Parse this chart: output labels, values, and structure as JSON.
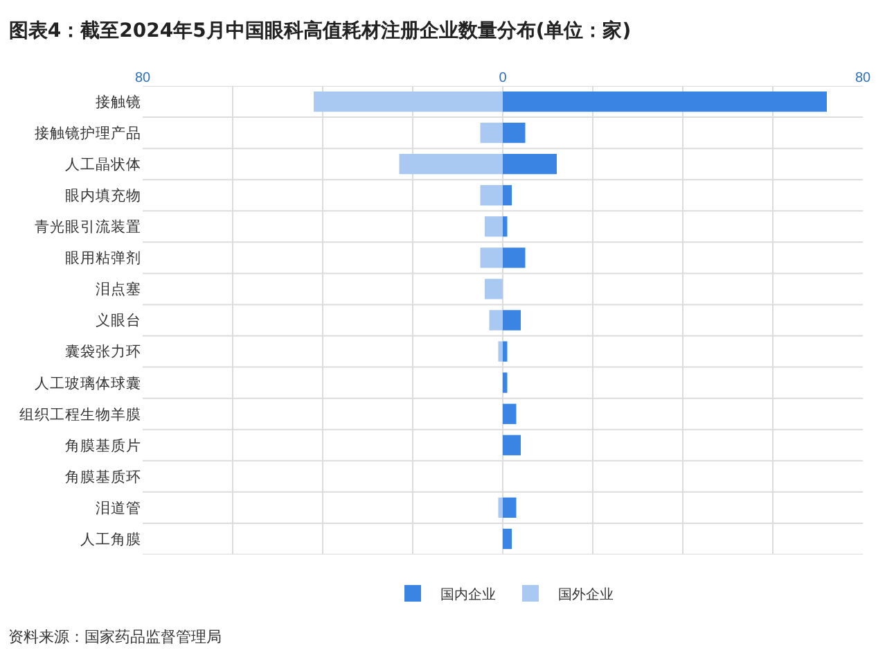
{
  "chart_data": {
    "type": "bar",
    "orientation": "horizontal",
    "title": "图表4：截至2024年5月中国眼科高值耗材注册企业数量分布(单位：家)",
    "categories": [
      "接触镜",
      "接触镜护理产品",
      "人工晶状体",
      "眼内填充物",
      "青光眼引流装置",
      "眼用粘弹剂",
      "泪点塞",
      "义眼台",
      "囊袋张力环",
      "人工玻璃体球囊",
      "组织工程生物羊膜",
      "角膜基质片",
      "角膜基质环",
      "泪道管",
      "人工角膜"
    ],
    "series": [
      {
        "name": "国内企业",
        "color": "#3a84e4",
        "values": [
          72,
          5,
          12,
          2,
          1,
          5,
          0,
          4,
          1,
          1,
          3,
          4,
          0,
          3,
          2
        ]
      },
      {
        "name": "国外企业",
        "color": "#a9c9f3",
        "values": [
          -42,
          -5,
          -23,
          -5,
          -4,
          -5,
          -4,
          -3,
          -1,
          0,
          0,
          0,
          0,
          -1,
          0
        ]
      }
    ],
    "xlim": [
      -80,
      80
    ],
    "xticks": [
      {
        "value": -80,
        "label": "80"
      },
      {
        "value": -60,
        "label": null
      },
      {
        "value": -40,
        "label": null
      },
      {
        "value": -20,
        "label": null
      },
      0,
      {
        "value": 20,
        "label": null
      },
      {
        "value": 40,
        "label": null
      },
      {
        "value": 60,
        "label": null
      },
      {
        "value": 80,
        "label": "80"
      }
    ],
    "stacked": true,
    "grid": true,
    "legend": "bottom",
    "annotations": [
      "资料来源：国家药品监督管理局"
    ]
  }
}
